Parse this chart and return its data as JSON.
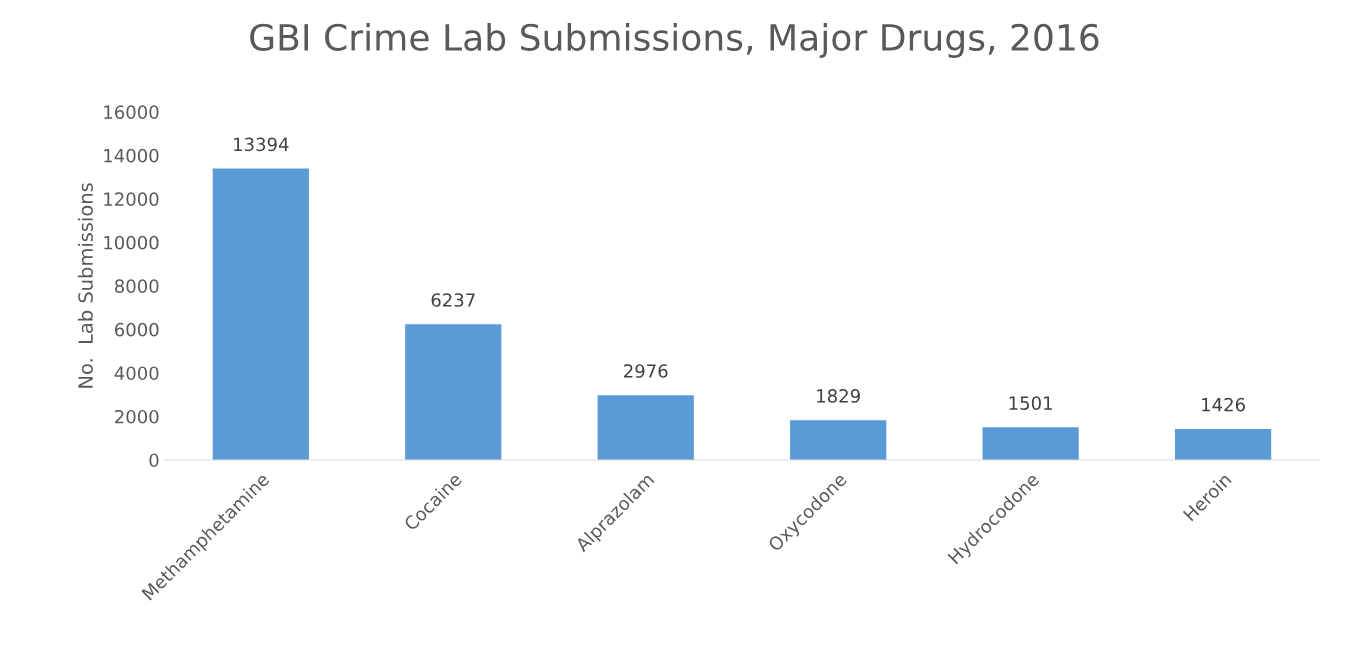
{
  "chart_data": {
    "type": "bar",
    "title": "GBI Crime Lab Submissions, Major Drugs, 2016",
    "ylabel": "No.  Lab Submissions",
    "categories": [
      "Methamphetamine",
      "Cocaine",
      "Alprazolam",
      "Oxycodone",
      "Hydrocodone",
      "Heroin"
    ],
    "values": [
      13394,
      6237,
      2976,
      1829,
      1501,
      1426
    ],
    "color": "#5b9bd5",
    "data_labels": true,
    "grid": false,
    "ylim": [
      0,
      16000
    ],
    "yticks": [
      0,
      2000,
      4000,
      6000,
      8000,
      10000,
      12000,
      14000,
      16000
    ]
  }
}
